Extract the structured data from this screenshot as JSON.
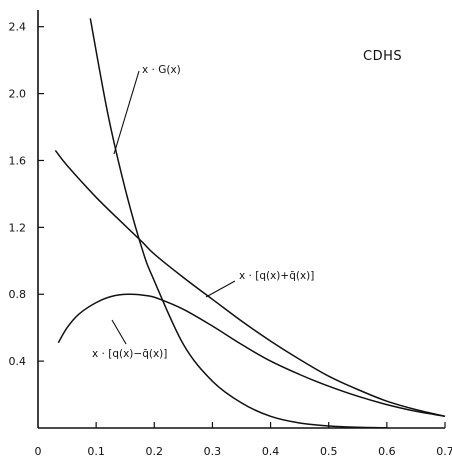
{
  "chart_data": {
    "type": "line",
    "title": "CDHS",
    "xlabel": "",
    "ylabel": "",
    "xlim": [
      0,
      0.7
    ],
    "ylim": [
      0,
      2.5
    ],
    "x_ticks": [
      "0",
      "0.1",
      "0.2",
      "0.3",
      "0.4",
      "0.5",
      "0.6",
      "0.7"
    ],
    "y_ticks": [
      "0.4",
      "0.8",
      "1.2",
      "1.6",
      "2.0",
      "2.4"
    ],
    "grid": false,
    "series": [
      {
        "name": "x · G(x)",
        "x": [
          0.09,
          0.12,
          0.15,
          0.18,
          0.2,
          0.25,
          0.3,
          0.35,
          0.4,
          0.45,
          0.5,
          0.55,
          0.6
        ],
        "values": [
          2.45,
          1.88,
          1.43,
          1.06,
          0.88,
          0.5,
          0.28,
          0.15,
          0.07,
          0.03,
          0.012,
          0.004,
          0.001
        ]
      },
      {
        "name": "x · [q(x)+q̄(x)]",
        "x": [
          0.03,
          0.05,
          0.1,
          0.15,
          0.18,
          0.2,
          0.25,
          0.3,
          0.35,
          0.4,
          0.45,
          0.5,
          0.55,
          0.6,
          0.65,
          0.7
        ],
        "values": [
          1.66,
          1.57,
          1.38,
          1.21,
          1.11,
          1.04,
          0.9,
          0.77,
          0.64,
          0.52,
          0.41,
          0.31,
          0.23,
          0.16,
          0.11,
          0.07
        ]
      },
      {
        "name": "x · [q(x)−q̄(x)]",
        "x": [
          0.035,
          0.05,
          0.07,
          0.1,
          0.13,
          0.16,
          0.19,
          0.21,
          0.25,
          0.3,
          0.35,
          0.4,
          0.45,
          0.5,
          0.55,
          0.6,
          0.65,
          0.7
        ],
        "values": [
          0.51,
          0.6,
          0.68,
          0.75,
          0.79,
          0.8,
          0.79,
          0.77,
          0.71,
          0.61,
          0.5,
          0.4,
          0.32,
          0.25,
          0.19,
          0.14,
          0.1,
          0.07
        ]
      }
    ]
  }
}
